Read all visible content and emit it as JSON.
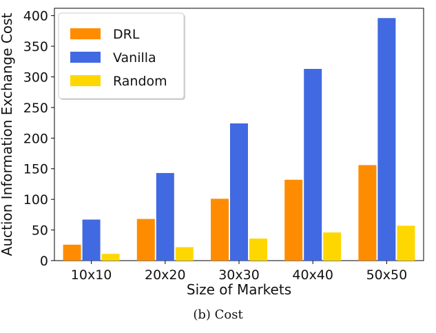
{
  "chart_data": {
    "type": "bar",
    "categories": [
      "10x10",
      "20x20",
      "30x30",
      "40x40",
      "50x50"
    ],
    "series": [
      {
        "name": "DRL",
        "color": "#ff8c00",
        "values": [
          26,
          68,
          101,
          132,
          156
        ]
      },
      {
        "name": "Vanilla",
        "color": "#4169e1",
        "values": [
          67,
          143,
          224,
          313,
          396
        ]
      },
      {
        "name": "Random",
        "color": "#ffd700",
        "values": [
          11,
          22,
          36,
          46,
          57
        ]
      }
    ],
    "xlabel": "Size of Markets",
    "ylabel": "Auction Information Exchange Cost",
    "ylim": [
      0,
      412
    ],
    "yticks": [
      0,
      50,
      100,
      150,
      200,
      250,
      300,
      350,
      400
    ],
    "grid": false,
    "legend_position": "top-left"
  },
  "caption": "(b)  Cost"
}
